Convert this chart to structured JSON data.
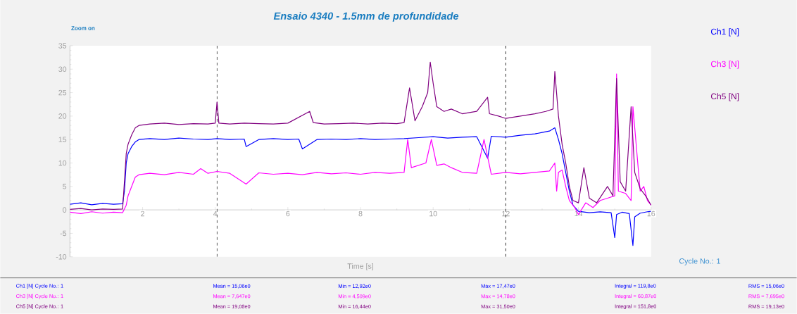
{
  "chart_data": {
    "type": "line",
    "title": "Ensaio 4340 - 1.5mm de profundidade",
    "xlabel": "Time [s]",
    "xlim": [
      0,
      16
    ],
    "ylim": [
      -10,
      35
    ],
    "xticks": [
      2,
      4,
      6,
      8,
      10,
      12,
      14,
      16
    ],
    "yticks": [
      -10,
      -5,
      0,
      5,
      10,
      15,
      20,
      25,
      30,
      35
    ],
    "legend": "right",
    "ref_lines": [
      {
        "axis": "x",
        "value": 4.05,
        "color": "#000000",
        "line_style": "dashed"
      },
      {
        "axis": "x",
        "value": 12,
        "color": "#000000",
        "line_style": "dashed"
      }
    ],
    "annotations": [
      "Zoom on",
      "Cycle No.: 1",
      "Ch1 [N] Cycle No.: 1",
      "Mean = 15,06e0",
      "Min = 12,92e0",
      "Max = 17,47e0",
      "Integral = 119,8e0",
      "RMS = 15,06e0",
      "Ch3 [N] Cycle No.: 1",
      "Mean = 7,647e0",
      "Min = 4,509e0",
      "Max = 14,78e0",
      "Integral = 60,87e0",
      "RMS = 7,695e0",
      "Ch5 [N] Cycle No.: 1",
      "Mean = 19,08e0",
      "Min = 16,44e0",
      "Max = 31,50e0",
      "Integral = 151,8e0",
      "RMS = 19,13e0"
    ],
    "series": [
      {
        "name": "Ch1 [N]",
        "color": "#0000ff",
        "x": [
          0,
          0.3,
          0.6,
          0.9,
          1.2,
          1.45,
          1.5,
          1.55,
          1.6,
          1.7,
          1.8,
          1.9,
          2.2,
          2.6,
          3.0,
          3.4,
          3.8,
          4.05,
          4.4,
          4.8,
          4.85,
          5.2,
          5.6,
          6.0,
          6.3,
          6.4,
          6.8,
          7.2,
          7.6,
          8.0,
          8.4,
          8.8,
          9.2,
          9.6,
          10.0,
          10.4,
          10.8,
          11.2,
          11.5,
          11.6,
          12.0,
          12.4,
          12.8,
          13.0,
          13.2,
          13.35,
          13.45,
          13.55,
          13.65,
          13.75,
          13.85,
          14.0,
          14.3,
          14.6,
          14.9,
          15.0,
          15.05,
          15.2,
          15.4,
          15.5,
          15.55,
          15.7,
          15.9,
          16.0
        ],
        "values": [
          1.2,
          1.5,
          1.1,
          1.4,
          1.2,
          1.3,
          4,
          10,
          12,
          13.5,
          14.5,
          15,
          15.2,
          15,
          15.3,
          15.1,
          15,
          15.2,
          15,
          15.1,
          13.5,
          15,
          15.2,
          15,
          15.1,
          13,
          15,
          15.1,
          15,
          15.2,
          15,
          15.1,
          15.2,
          15.4,
          15.6,
          15.3,
          15.5,
          15.6,
          11,
          15.7,
          15.5,
          15.9,
          16.2,
          16.5,
          16.8,
          17.5,
          15,
          12,
          8,
          4,
          1,
          -0.3,
          -0.6,
          -0.4,
          -0.6,
          -5.9,
          -1,
          -0.5,
          -0.8,
          -7.6,
          -1.5,
          -0.7,
          -0.4,
          -0.3
        ]
      },
      {
        "name": "Ch3 [N]",
        "color": "#ff00ff",
        "x": [
          0,
          0.3,
          0.6,
          0.9,
          1.2,
          1.45,
          1.55,
          1.6,
          1.7,
          1.8,
          1.9,
          2.2,
          2.6,
          3.0,
          3.4,
          3.6,
          3.8,
          4.05,
          4.4,
          4.85,
          5.2,
          5.6,
          6.0,
          6.4,
          6.8,
          7.2,
          7.6,
          8.0,
          8.4,
          8.8,
          9.2,
          9.3,
          9.4,
          9.6,
          9.8,
          9.95,
          10.1,
          10.3,
          10.5,
          10.8,
          11.2,
          11.4,
          11.6,
          12.0,
          12.4,
          12.8,
          13.2,
          13.35,
          13.4,
          13.45,
          13.55,
          13.65,
          13.75,
          13.9,
          14.0,
          14.2,
          14.4,
          14.6,
          14.8,
          15.0,
          15.05,
          15.1,
          15.3,
          15.45,
          15.5,
          15.7,
          15.8,
          15.9,
          16.0
        ],
        "values": [
          -0.5,
          -0.8,
          -0.4,
          -0.7,
          -0.5,
          -0.6,
          1,
          3,
          5,
          7,
          7.5,
          7.8,
          7.5,
          8,
          7.6,
          8.8,
          7.8,
          8.2,
          7.8,
          5.5,
          7.9,
          7.6,
          7.8,
          7.5,
          8,
          7.7,
          7.9,
          7.6,
          8,
          7.8,
          8,
          15,
          9,
          9.5,
          10,
          15,
          9.5,
          9.8,
          9,
          8,
          7.8,
          15,
          7.6,
          8,
          7.7,
          8,
          8.3,
          10,
          4,
          8,
          8.5,
          5,
          2,
          0.5,
          -1,
          1.5,
          0.5,
          2,
          2.5,
          3,
          29,
          4,
          3.5,
          2,
          22,
          4,
          5,
          2,
          1
        ]
      },
      {
        "name": "Ch5 [N]",
        "color": "#800080",
        "x": [
          0,
          0.3,
          0.6,
          0.9,
          1.2,
          1.45,
          1.5,
          1.55,
          1.6,
          1.7,
          1.8,
          1.9,
          2.2,
          2.6,
          3.0,
          3.4,
          3.8,
          4.0,
          4.05,
          4.1,
          4.4,
          4.8,
          5.2,
          5.6,
          6.0,
          6.6,
          6.7,
          7.0,
          7.4,
          7.8,
          8.2,
          8.6,
          9.0,
          9.2,
          9.35,
          9.5,
          9.7,
          9.85,
          9.92,
          10.0,
          10.1,
          10.3,
          10.5,
          10.8,
          11.2,
          11.5,
          11.55,
          11.8,
          12.0,
          12.4,
          12.8,
          13.1,
          13.3,
          13.35,
          13.45,
          13.55,
          13.65,
          13.75,
          13.85,
          14.0,
          14.15,
          14.3,
          14.5,
          14.8,
          14.95,
          15.05,
          15.15,
          15.3,
          15.45,
          15.55,
          15.7,
          15.85,
          16.0
        ],
        "values": [
          0.1,
          0.3,
          0,
          0.2,
          0.1,
          0.2,
          6,
          12,
          14,
          16,
          17.5,
          18,
          18.3,
          18.5,
          18.2,
          18.4,
          18.3,
          18.5,
          23,
          18.5,
          18.3,
          18.5,
          18.4,
          18.3,
          18.5,
          21,
          18.6,
          18.3,
          18.4,
          18.5,
          18.3,
          18.5,
          18.4,
          18.6,
          26,
          19,
          22,
          25,
          31.5,
          27,
          22,
          21,
          21.5,
          20.5,
          21,
          24,
          20.5,
          20,
          19.5,
          20,
          20.5,
          21,
          21.5,
          29.5,
          20,
          14,
          10,
          5,
          2,
          1.5,
          9,
          2.5,
          1.5,
          5,
          3,
          28,
          6,
          4,
          22,
          8,
          4.5,
          3,
          1
        ]
      }
    ]
  }
}
